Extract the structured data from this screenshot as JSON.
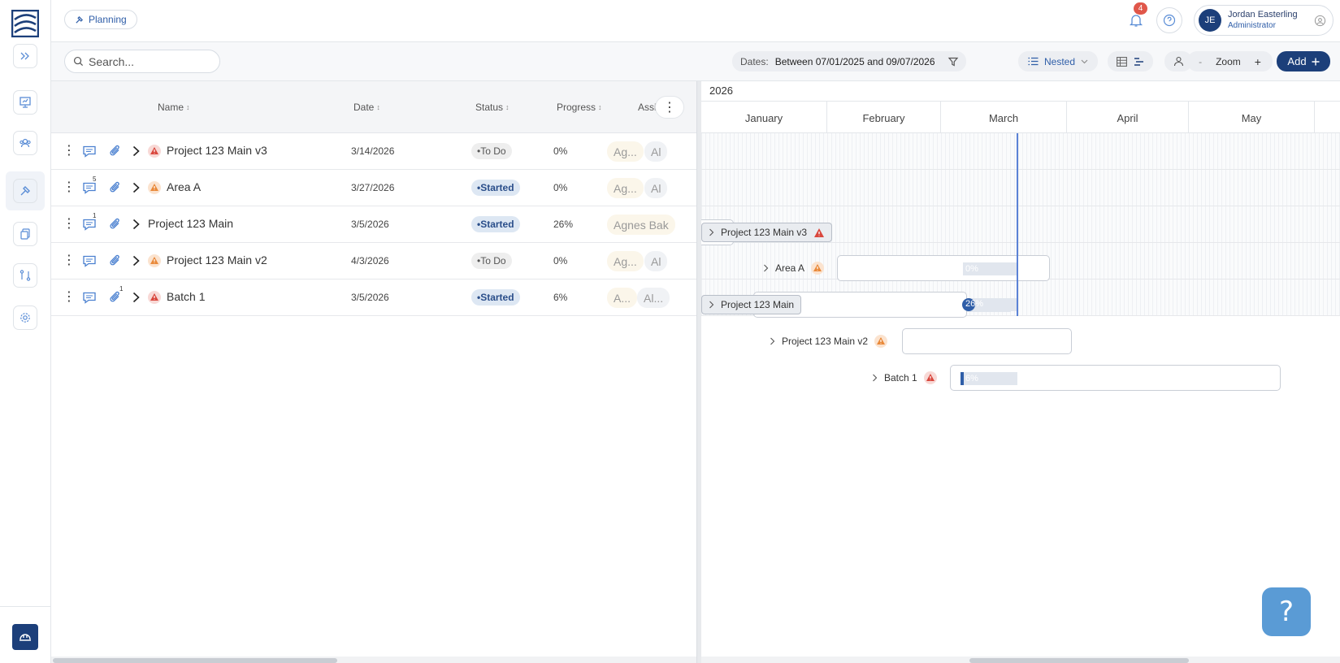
{
  "header": {
    "breadcrumb": "Planning",
    "notifications_count": "4",
    "user": {
      "initials": "JE",
      "name": "Jordan Easterling",
      "role": "Administrator"
    }
  },
  "toolbar": {
    "search_placeholder": "Search...",
    "dates_label": "Dates:",
    "dates_value": "Between 07/01/2025 and 09/07/2026",
    "view_mode": "Nested",
    "zoom_label": "Zoom",
    "zoom_minus": "-",
    "zoom_plus": "+",
    "add_label": "Add"
  },
  "grid": {
    "columns": {
      "name": "Name",
      "date": "Date",
      "status": "Status",
      "progress": "Progress",
      "assigned": "Assigned"
    },
    "rows": [
      {
        "name": "Project 123 Main v3",
        "date": "3/14/2026",
        "status": "To Do",
        "progress": "0%",
        "assignee1": "Ag...",
        "assignee2": "Al",
        "comments": "",
        "attachments": "",
        "warning": "red"
      },
      {
        "name": "Area A",
        "date": "3/27/2026",
        "status": "Started",
        "progress": "0%",
        "assignee1": "Ag...",
        "assignee2": "Al",
        "comments": "5",
        "attachments": "",
        "warning": "orange"
      },
      {
        "name": "Project 123 Main",
        "date": "3/5/2026",
        "status": "Started",
        "progress": "26%",
        "assignee1": "Agnes Bak",
        "assignee2": "",
        "comments": "1",
        "attachments": "",
        "warning": ""
      },
      {
        "name": "Project 123 Main v2",
        "date": "4/3/2026",
        "status": "To Do",
        "progress": "0%",
        "assignee1": "Ag...",
        "assignee2": "Al",
        "comments": "",
        "attachments": "",
        "warning": "orange"
      },
      {
        "name": "Batch 1",
        "date": "3/5/2026",
        "status": "Started",
        "progress": "6%",
        "assignee1": "A...",
        "assignee2": "Al...",
        "comments": "",
        "attachments": "1",
        "warning": "red"
      }
    ]
  },
  "gantt": {
    "year": "2026",
    "months": [
      "January",
      "February",
      "March",
      "April",
      "May"
    ],
    "bars": [
      {
        "label": "Project 123 Main v3",
        "progress_label": "",
        "progress": 0
      },
      {
        "label": "Area A",
        "progress_label": "0%",
        "progress": 0
      },
      {
        "label": "Project 123 Main",
        "progress_label": "26%",
        "progress": 26
      },
      {
        "label": "Project 123 Main v2",
        "progress_label": "",
        "progress": 0
      },
      {
        "label": "Batch 1",
        "progress_label": "6%",
        "progress": 6
      }
    ]
  },
  "colors": {
    "brand": "#1c3f7a",
    "accent": "#2f5ea8",
    "today_line": "#5b82d6",
    "warn_red": "#d9473d",
    "warn_orange": "#e9893a"
  }
}
